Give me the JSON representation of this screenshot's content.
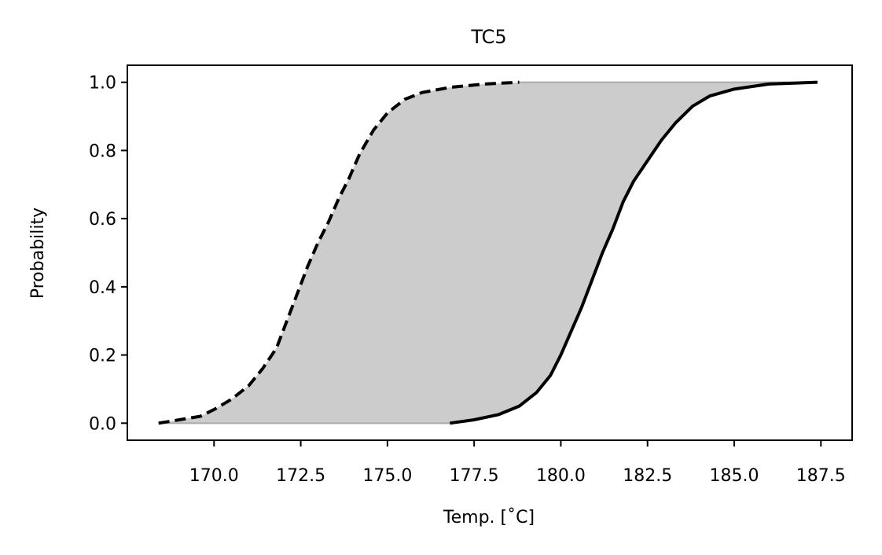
{
  "chart_data": {
    "type": "area",
    "title": "TC5",
    "xlabel": "Temp. [˚C]",
    "ylabel": "Probability",
    "xlim": [
      167.5,
      188.4
    ],
    "ylim": [
      -0.05,
      1.05
    ],
    "x_ticks": [
      170.0,
      172.5,
      175.0,
      177.5,
      180.0,
      182.5,
      185.0,
      187.5
    ],
    "x_tick_labels": [
      "170.0",
      "172.5",
      "175.0",
      "177.5",
      "180.0",
      "182.5",
      "185.0",
      "187.5"
    ],
    "y_ticks": [
      0.0,
      0.2,
      0.4,
      0.6,
      0.8,
      1.0
    ],
    "y_tick_labels": [
      "0.0",
      "0.2",
      "0.4",
      "0.6",
      "0.8",
      "1.0"
    ],
    "grid": false,
    "band_color": "#cccccc",
    "series": [
      {
        "style": "dashed",
        "color": "#000000",
        "points": [
          [
            168.4,
            0.0
          ],
          [
            169.0,
            0.01
          ],
          [
            169.6,
            0.02
          ],
          [
            170.0,
            0.04
          ],
          [
            170.5,
            0.07
          ],
          [
            171.0,
            0.11
          ],
          [
            171.4,
            0.16
          ],
          [
            171.8,
            0.22
          ],
          [
            172.1,
            0.3
          ],
          [
            172.4,
            0.38
          ],
          [
            172.7,
            0.46
          ],
          [
            173.0,
            0.53
          ],
          [
            173.3,
            0.59
          ],
          [
            173.6,
            0.66
          ],
          [
            173.9,
            0.72
          ],
          [
            174.2,
            0.79
          ],
          [
            174.6,
            0.86
          ],
          [
            175.0,
            0.91
          ],
          [
            175.5,
            0.95
          ],
          [
            176.0,
            0.97
          ],
          [
            176.8,
            0.985
          ],
          [
            177.8,
            0.995
          ],
          [
            178.8,
            1.0
          ]
        ]
      },
      {
        "style": "solid",
        "color": "#000000",
        "points": [
          [
            176.8,
            0.0
          ],
          [
            177.5,
            0.01
          ],
          [
            178.2,
            0.025
          ],
          [
            178.8,
            0.05
          ],
          [
            179.3,
            0.09
          ],
          [
            179.7,
            0.14
          ],
          [
            180.0,
            0.2
          ],
          [
            180.3,
            0.27
          ],
          [
            180.6,
            0.34
          ],
          [
            180.9,
            0.42
          ],
          [
            181.2,
            0.5
          ],
          [
            181.5,
            0.57
          ],
          [
            181.8,
            0.65
          ],
          [
            182.1,
            0.71
          ],
          [
            182.5,
            0.77
          ],
          [
            182.9,
            0.83
          ],
          [
            183.3,
            0.88
          ],
          [
            183.8,
            0.93
          ],
          [
            184.3,
            0.96
          ],
          [
            185.0,
            0.98
          ],
          [
            186.0,
            0.995
          ],
          [
            187.4,
            1.0
          ]
        ]
      }
    ]
  }
}
